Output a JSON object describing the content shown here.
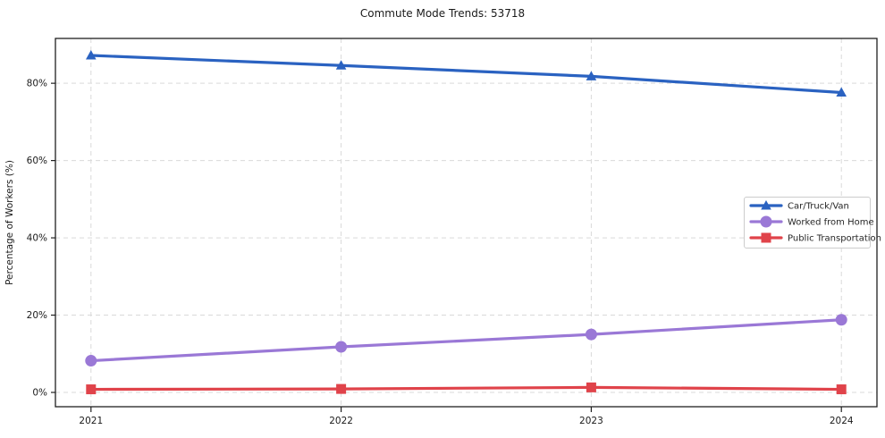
{
  "title": "Commute Mode Trends: 53718",
  "chart_data": {
    "type": "line",
    "title": "Commute Mode Trends: 53718",
    "xlabel": "",
    "ylabel": "Percentage of Workers (%)",
    "x": [
      2021,
      2022,
      2023,
      2024
    ],
    "x_tick_labels": [
      "2021",
      "2022",
      "2023",
      "2024"
    ],
    "y_ticks": [
      0,
      20,
      40,
      60,
      80
    ],
    "y_tick_labels": [
      "0%",
      "20%",
      "40%",
      "60%",
      "80%"
    ],
    "ylim": [
      -3.7,
      91.6
    ],
    "grid": true,
    "grid_style": "dashed",
    "legend_position": "center-right",
    "series": [
      {
        "name": "Car/Truck/Van",
        "color": "#2a62c1",
        "marker": "triangle",
        "values": [
          87.2,
          84.6,
          81.8,
          77.6
        ]
      },
      {
        "name": "Worked from Home",
        "color": "#9a78d6",
        "marker": "circle",
        "values": [
          8.2,
          11.8,
          15.0,
          18.8
        ]
      },
      {
        "name": "Public Transportation",
        "color": "#e0434a",
        "marker": "square",
        "values": [
          0.8,
          0.9,
          1.3,
          0.8
        ]
      }
    ],
    "colors": {
      "grid": "#d9d9d9",
      "spine": "#1f1f1f",
      "tick_text": "#1a1a1a",
      "legend_border": "#cccccc",
      "legend_text": "#262626"
    }
  }
}
